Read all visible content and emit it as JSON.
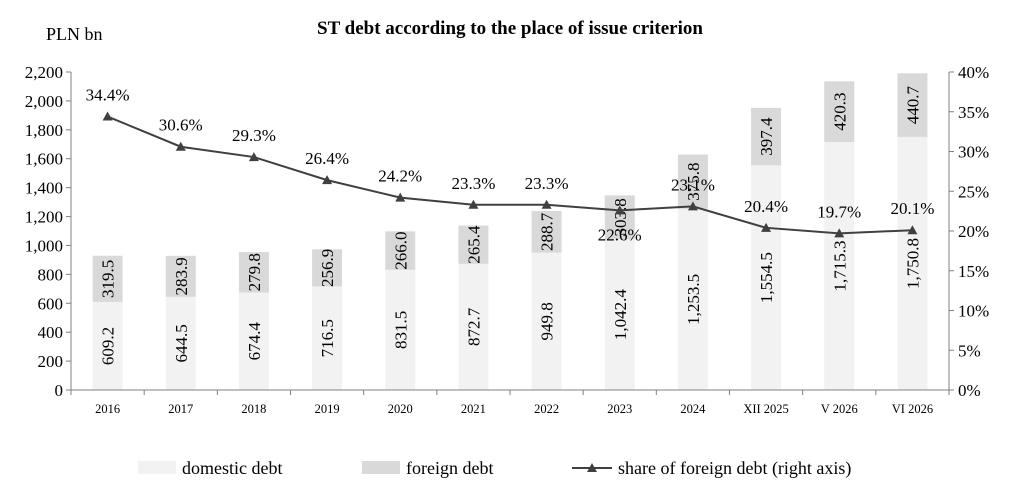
{
  "chart_data": {
    "type": "bar",
    "title": "ST debt according to the place of issue criterion",
    "ylabel": "PLN bn",
    "y2label": "",
    "ylim": [
      0,
      2200
    ],
    "yticks": [
      "0",
      "200",
      "400",
      "600",
      "800",
      "1,000",
      "1,200",
      "1,400",
      "1,600",
      "1,800",
      "2,000",
      "2,200"
    ],
    "y2lim": [
      0,
      40
    ],
    "y2ticks": [
      "0%",
      "5%",
      "10%",
      "15%",
      "20%",
      "25%",
      "30%",
      "35%",
      "40%"
    ],
    "stacked": true,
    "grid": false,
    "legend_position": "bottom",
    "categories": [
      "2016",
      "2017",
      "2018",
      "2019",
      "2020",
      "2021",
      "2022",
      "2023",
      "2024",
      "XII 2025",
      "V 2026",
      "VI 2026"
    ],
    "series": [
      {
        "name": "domestic debt",
        "kind": "bar",
        "axis": "left",
        "color": "#f2f2f2",
        "values": [
          609.2,
          644.5,
          674.4,
          716.5,
          831.5,
          872.7,
          949.8,
          1042.4,
          1253.5,
          1554.5,
          1715.3,
          1750.8
        ],
        "labels": [
          "609.2",
          "644.5",
          "674.4",
          "716.5",
          "831.5",
          "872.7",
          "949.8",
          "1,042.4",
          "1,253.5",
          "1,554.5",
          "1,715.3",
          "1,750.8"
        ]
      },
      {
        "name": "foreign debt",
        "kind": "bar",
        "axis": "left",
        "color": "#d9d9d9",
        "values": [
          319.5,
          283.9,
          279.8,
          256.9,
          266.0,
          265.4,
          288.7,
          303.8,
          375.8,
          397.4,
          420.3,
          440.7
        ],
        "labels": [
          "319.5",
          "283.9",
          "279.8",
          "256.9",
          "266.0",
          "265.4",
          "288.7",
          "303.8",
          "375.8",
          "397.4",
          "420.3",
          "440.7"
        ]
      },
      {
        "name": "share of foreign debt (right axis)",
        "kind": "line",
        "axis": "right",
        "color": "#404040",
        "values": [
          34.4,
          30.6,
          29.3,
          26.4,
          24.2,
          23.3,
          23.3,
          22.6,
          23.1,
          20.4,
          19.7,
          20.1
        ],
        "labels": [
          "34.4%",
          "30.6%",
          "29.3%",
          "26.4%",
          "24.2%",
          "23.3%",
          "23.3%",
          "22.6%",
          "23.1%",
          "20.4%",
          "19.7%",
          "20.1%"
        ]
      }
    ]
  }
}
